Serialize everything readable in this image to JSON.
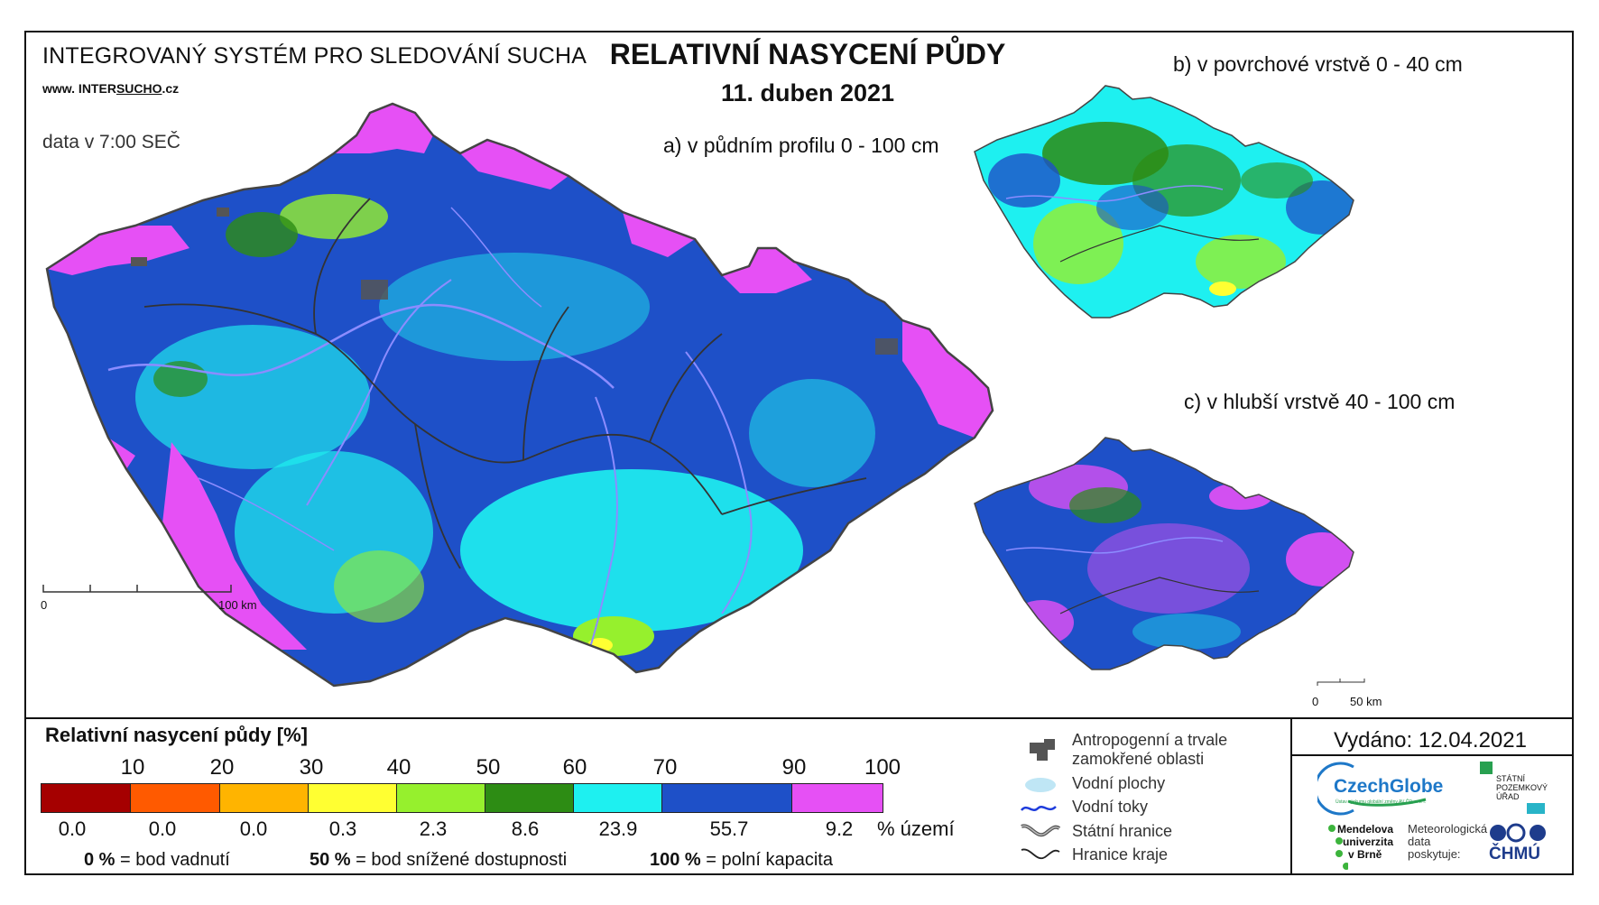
{
  "header": {
    "system_title": "INTEGROVANÝ SYSTÉM PRO SLEDOVÁNÍ SUCHA",
    "website_prefix": "www. INTER",
    "website_mid": "SUCHO",
    "website_suffix": ".cz",
    "data_time": "data v 7:00 SEČ",
    "main_title": "RELATIVNÍ NASYCENÍ PŮDY",
    "date": "11. duben 2021"
  },
  "maps": {
    "a": {
      "label": "a) v půdním profilu 0 - 100 cm",
      "scale_start": "0",
      "scale_end": "100 km"
    },
    "b": {
      "label": "b) v povrchové vrstvě 0 - 40 cm"
    },
    "c": {
      "label": "c) v hlubší vrstvě 40 - 100 cm",
      "scale_start": "0",
      "scale_end": "50 km"
    }
  },
  "legend": {
    "title": "Relativní nasycení půdy [%]",
    "ticks": [
      "10",
      "20",
      "30",
      "40",
      "50",
      "60",
      "70",
      "90",
      "100"
    ],
    "classes": [
      {
        "color": "#a50000",
        "share": "0.0"
      },
      {
        "color": "#ff5a00",
        "share": "0.0"
      },
      {
        "color": "#ffb400",
        "share": "0.0"
      },
      {
        "color": "#ffff32",
        "share": "0.3"
      },
      {
        "color": "#96f02d",
        "share": "2.3"
      },
      {
        "color": "#2d8c14",
        "share": "8.6"
      },
      {
        "color": "#1ef0f0",
        "share": "23.9"
      },
      {
        "color": "#1e50c8",
        "share": "55.7"
      },
      {
        "color": "#e650f5",
        "share": "9.2"
      }
    ],
    "share_unit": "% území",
    "def1_value": "0 %",
    "def1_text": "= bod vadnutí",
    "def2_value": "50 %",
    "def2_text": "= bod snížené dostupnosti",
    "def3_value": "100 %",
    "def3_text": "= polní kapacita"
  },
  "symbols": {
    "anthropogenic_1": "Antropogenní a trvale",
    "anthropogenic_2": "zamokřené oblasti",
    "water_bodies": "Vodní plochy",
    "water_courses": "Vodní toky",
    "state_border": "Státní hranice",
    "region_border": "Hranice kraje"
  },
  "footer": {
    "issued": "Vydáno: 12.04.2021",
    "czechglobe": "CzechGlobe",
    "czechglobe_sub": "Ústav výzkumu globální změny AV ČR, v. v. i.",
    "spu_1": "STÁTNÍ",
    "spu_2": "POZEMKOVÝ",
    "spu_3": "ÚŘAD",
    "mendel_1": "Mendelova",
    "mendel_2": "univerzita",
    "mendel_3": "v Brně",
    "meteo_1": "Meteorologická",
    "meteo_2": "data",
    "meteo_3": "poskytuje:",
    "chmu": "ČHMÚ"
  },
  "colors": {
    "deep_blue": "#1e50c8",
    "cyan": "#1ef0f0",
    "magenta": "#e650f5",
    "green": "#2d8c14",
    "light_green": "#96f02d",
    "river": "#8c8cff"
  }
}
